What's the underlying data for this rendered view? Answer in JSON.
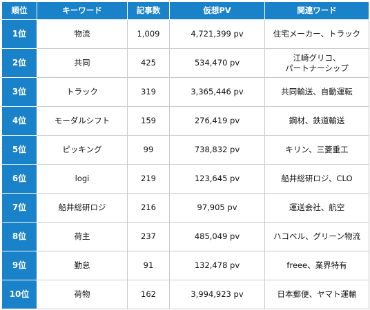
{
  "table": {
    "headers": {
      "rank": "順位",
      "keyword": "キーワード",
      "article_count": "記事数",
      "virtual_pv": "仮想PV",
      "related_words": "関連ワード"
    },
    "rows": [
      {
        "rank": "1位",
        "keyword": "物流",
        "article_count": "1,009",
        "virtual_pv": "4,721,399 pv",
        "related_words": "住宅メーカー、トラック"
      },
      {
        "rank": "2位",
        "keyword": "共同",
        "article_count": "425",
        "virtual_pv": "534,470 pv",
        "related_words": "江崎グリコ、パートナーシップ"
      },
      {
        "rank": "3位",
        "keyword": "トラック",
        "article_count": "319",
        "virtual_pv": "3,365,446 pv",
        "related_words": "共同輸送、自動運転"
      },
      {
        "rank": "4位",
        "keyword": "モーダルシフト",
        "article_count": "159",
        "virtual_pv": "276,419 pv",
        "related_words": "鋼材、鉄道輸送"
      },
      {
        "rank": "5位",
        "keyword": "ピッキング",
        "article_count": "99",
        "virtual_pv": "738,832 pv",
        "related_words": "キリン、三菱重工"
      },
      {
        "rank": "6位",
        "keyword": "logi",
        "article_count": "219",
        "virtual_pv": "123,645 pv",
        "related_words": "船井総研ロジ、CLO"
      },
      {
        "rank": "7位",
        "keyword": "船井総研ロジ",
        "article_count": "216",
        "virtual_pv": "97,905 pv",
        "related_words": "運送会社、航空"
      },
      {
        "rank": "8位",
        "keyword": "荷主",
        "article_count": "237",
        "virtual_pv": "485,049 pv",
        "related_words": "ハコベル、グリーン物流"
      },
      {
        "rank": "9位",
        "keyword": "勤怠",
        "article_count": "91",
        "virtual_pv": "132,478 pv",
        "related_words": "freee、業界特有"
      },
      {
        "rank": "10位",
        "keyword": "荷物",
        "article_count": "162",
        "virtual_pv": "3,994,923 pv",
        "related_words": "日本郵便、ヤマト運輸"
      }
    ]
  },
  "colors": {
    "header_bg": "#1a82c8",
    "header_text": "#ffffff",
    "border": "#c9c9c9"
  }
}
